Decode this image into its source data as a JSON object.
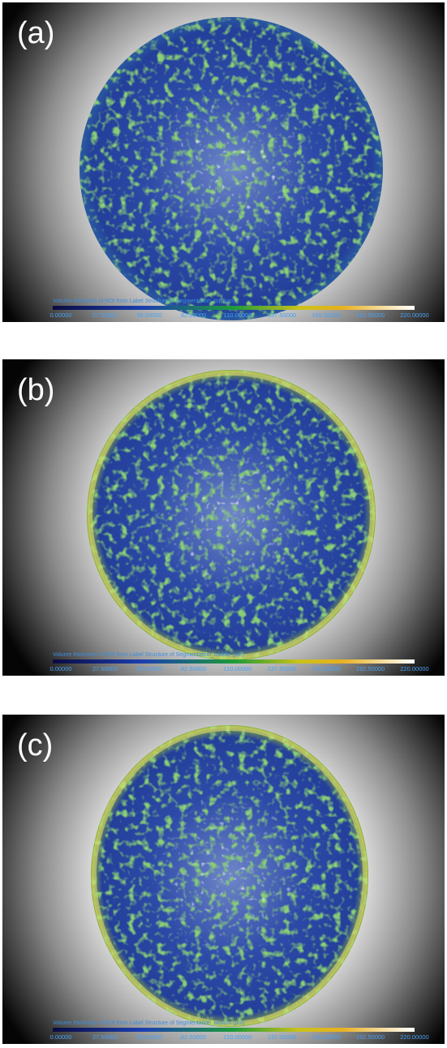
{
  "panels": [
    {
      "label": "(a)",
      "colorbar_title": "Volume thickness of ROI from Label Structure of Segmentation_top (µm)",
      "colorbar_ticks": [
        "0.00000",
        "27.50000",
        "55.00000",
        "82.50000",
        "110.00000",
        "137.50000",
        "165.00000",
        "192.50000",
        "220.00000"
      ]
    },
    {
      "label": "(b)",
      "colorbar_title": "Volume thickness of ROI from Label Structure of Segmentation_middle (µm)",
      "colorbar_ticks": [
        "0.00000",
        "27.50000",
        "55.00000",
        "82.50000",
        "110.00000",
        "137.50000",
        "165.00000",
        "192.50000",
        "220.00000"
      ]
    },
    {
      "label": "(c)",
      "colorbar_title": "Volume thickness of ROI from Label Structure of Segmentation_bottom (µm)",
      "colorbar_ticks": [
        "0.00000",
        "27.50000",
        "55.00000",
        "82.50000",
        "110.00000",
        "137.50000",
        "165.00000",
        "192.50000",
        "220.00000"
      ]
    }
  ]
}
